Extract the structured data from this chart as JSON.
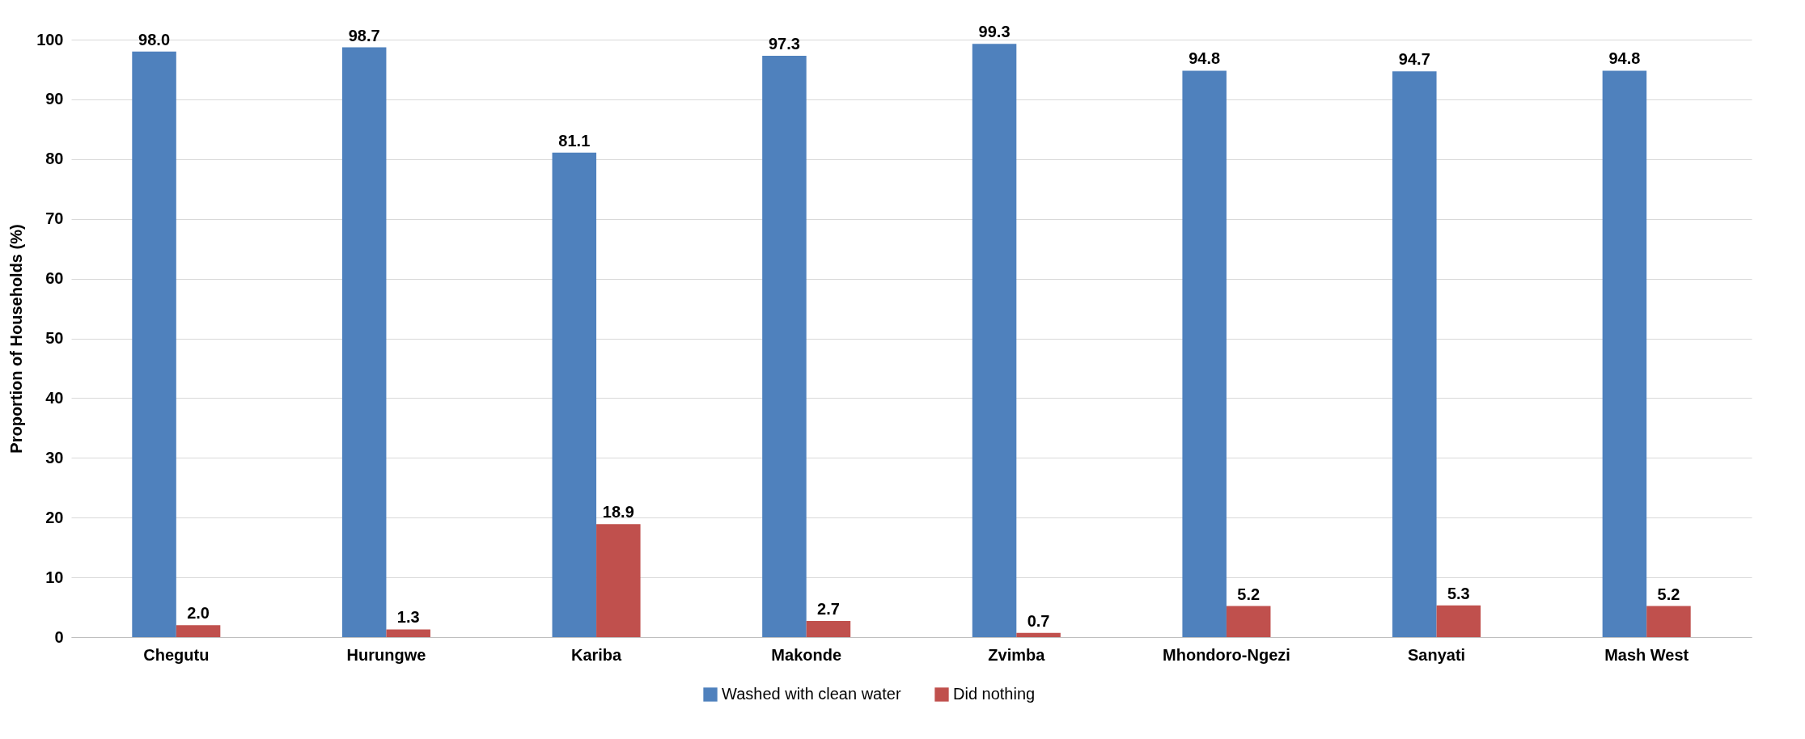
{
  "chart_data": {
    "type": "bar",
    "ylabel": "Proportion of Households (%)",
    "categories": [
      "Chegutu",
      "Hurungwe",
      "Kariba",
      "Makonde",
      "Zvimba",
      "Mhondoro-Ngezi",
      "Sanyati",
      "Mash West"
    ],
    "series": [
      {
        "name": "Washed with clean water",
        "color": "#4f81bd",
        "values": [
          98.0,
          98.7,
          81.1,
          97.3,
          99.3,
          94.8,
          94.7,
          94.8
        ],
        "value_labels": [
          "98.0",
          "98.7",
          "81.1",
          "97.3",
          "99.3",
          "94.8",
          "94.7",
          "94.8"
        ]
      },
      {
        "name": "Did nothing",
        "color": "#c0504d",
        "values": [
          2.0,
          1.3,
          18.9,
          2.7,
          0.7,
          5.2,
          5.3,
          5.2
        ],
        "value_labels": [
          "2.0",
          "1.3",
          "18.9",
          "2.7",
          "0.7",
          "5.2",
          "5.3",
          "5.2"
        ]
      }
    ],
    "ylim": [
      0,
      100
    ],
    "yticks": [
      0,
      10,
      20,
      30,
      40,
      50,
      60,
      70,
      80,
      90,
      100
    ],
    "grid": "y",
    "legend": "bottom"
  }
}
